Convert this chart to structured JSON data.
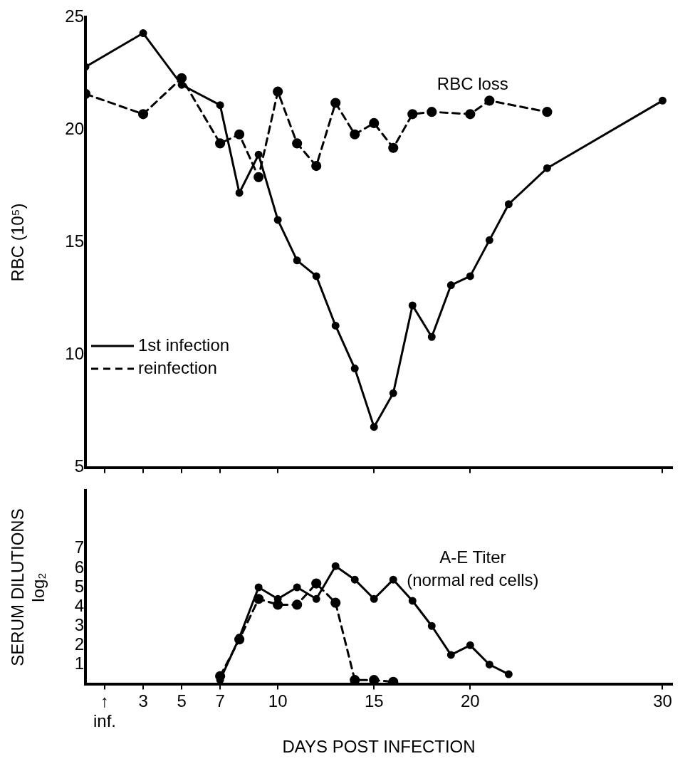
{
  "chart_data": [
    {
      "type": "line",
      "ylabel": "RBC (10⁵)",
      "annotations": [
        "RBC loss"
      ],
      "legend": "left",
      "tick_labels": "y",
      "marker": "circle",
      "xlim": [
        0,
        30.5
      ],
      "xticks": [
        1,
        3,
        5,
        7,
        10,
        15,
        20,
        30
      ],
      "ylim": [
        5,
        25
      ],
      "yticks": [
        5,
        10,
        15,
        20,
        25
      ],
      "series": [
        {
          "name": "1st infection",
          "color": "#000000",
          "line_style": "solid",
          "x": [
            0,
            3,
            5,
            7,
            8,
            9,
            10,
            11,
            12,
            13,
            14,
            15,
            16,
            17,
            18,
            19,
            20,
            21,
            22,
            24,
            30
          ],
          "values": [
            22.8,
            24.3,
            22.0,
            21.1,
            17.2,
            18.9,
            16.0,
            14.2,
            13.5,
            11.3,
            9.4,
            6.8,
            8.3,
            12.2,
            10.8,
            13.1,
            13.5,
            15.1,
            16.7,
            18.3,
            21.3
          ]
        },
        {
          "name": "reinfection",
          "color": "#000000",
          "line_style": "dashed",
          "x": [
            0,
            3,
            5,
            7,
            8,
            9,
            10,
            11,
            12,
            13,
            14,
            15,
            16,
            17,
            18,
            20,
            21,
            24
          ],
          "values": [
            21.6,
            20.7,
            22.3,
            19.4,
            19.8,
            17.9,
            21.7,
            19.4,
            18.4,
            21.2,
            19.8,
            20.3,
            19.2,
            20.7,
            20.8,
            20.7,
            21.3,
            20.8
          ]
        }
      ]
    },
    {
      "type": "line",
      "ylabel": "SERUM DILUTIONS\nlog₂",
      "xlabel": "DAYS POST INFECTION",
      "annotations": [
        "A-E Titer",
        "(normal red cells)"
      ],
      "marker": "circle",
      "xlim": [
        0,
        30.5
      ],
      "xticks": [
        {
          "value": 1,
          "label": "↑\ninf."
        },
        3,
        5,
        7,
        10,
        15,
        20,
        30
      ],
      "ylim": [
        0,
        10
      ],
      "yticks": [
        1,
        2,
        3,
        4,
        5,
        6,
        7
      ],
      "series": [
        {
          "color": "#000000",
          "line_style": "solid",
          "x": [
            7,
            8,
            9,
            10,
            11,
            12,
            13,
            14,
            15,
            16,
            17,
            18,
            19,
            20,
            21,
            22
          ],
          "values": [
            0.2,
            2.4,
            5.0,
            4.4,
            5.0,
            4.4,
            6.1,
            5.4,
            4.4,
            5.4,
            4.3,
            3.0,
            1.5,
            2.0,
            1.0,
            0.5
          ]
        },
        {
          "color": "#000000",
          "line_style": "dashed",
          "x": [
            7,
            8,
            9,
            10,
            11,
            12,
            13,
            14,
            15,
            16
          ],
          "values": [
            0.4,
            2.3,
            4.4,
            4.1,
            4.1,
            5.2,
            4.2,
            0.2,
            0.2,
            0.1
          ]
        }
      ]
    }
  ]
}
